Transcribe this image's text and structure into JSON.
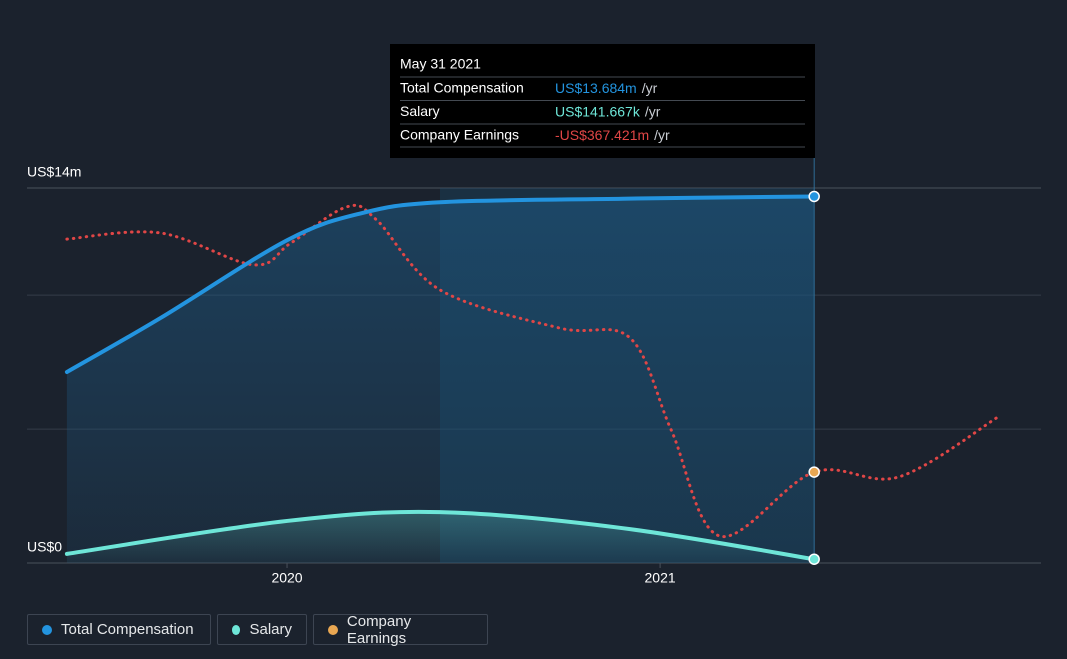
{
  "chart_data": {
    "type": "line",
    "xlim": [
      2019.303,
      2022.021
    ],
    "xticks": [
      2020,
      2021
    ],
    "ylim": [
      0,
      14
    ],
    "yticks": [
      {
        "value": 0,
        "label": "US$0"
      },
      {
        "value": 14,
        "label": "US$14m"
      }
    ],
    "grid_values": [
      5,
      10
    ],
    "y2lim": [
      -661,
      550
    ],
    "series": [
      {
        "name": "Total Compensation",
        "color": "#2394df",
        "x": [
          2019.41,
          2019.66,
          2020.0,
          2020.2,
          2020.41,
          2020.9,
          2021.413
        ],
        "values": [
          7.13,
          9.14,
          12.05,
          13.06,
          13.47,
          13.6,
          13.684
        ]
      },
      {
        "name": "Salary",
        "color": "#6ee6d8",
        "x": [
          2019.41,
          2020.0,
          2020.41,
          2020.9,
          2021.413
        ],
        "values": [
          0.34,
          1.57,
          1.9,
          1.3,
          0.141667
        ]
      },
      {
        "name": "Company Earnings",
        "color": "#e9a752",
        "line_color": "#e04646",
        "axis": "y2",
        "x": [
          2019.41,
          2019.66,
          2019.91,
          2020.01,
          2020.16,
          2020.24,
          2020.41,
          2020.73,
          2020.92,
          2021.03,
          2021.16,
          2021.413,
          2021.64,
          2021.91
        ],
        "values": [
          385,
          405,
          302,
          372,
          489,
          447,
          221,
          98,
          65,
          -232,
          -574,
          -367.421,
          -383,
          -186
        ]
      }
    ],
    "tooltip": {
      "date": "May 31 2021",
      "rows": [
        {
          "label": "Total Compensation",
          "value": "US$13.684m",
          "unit": "/yr",
          "color": "#2394df"
        },
        {
          "label": "Salary",
          "value": "US$141.667k",
          "unit": "/yr",
          "color": "#6ee6d8"
        },
        {
          "label": "Company Earnings",
          "value": "-US$367.421m",
          "unit": "/yr",
          "color": "#e04646"
        }
      ]
    }
  }
}
